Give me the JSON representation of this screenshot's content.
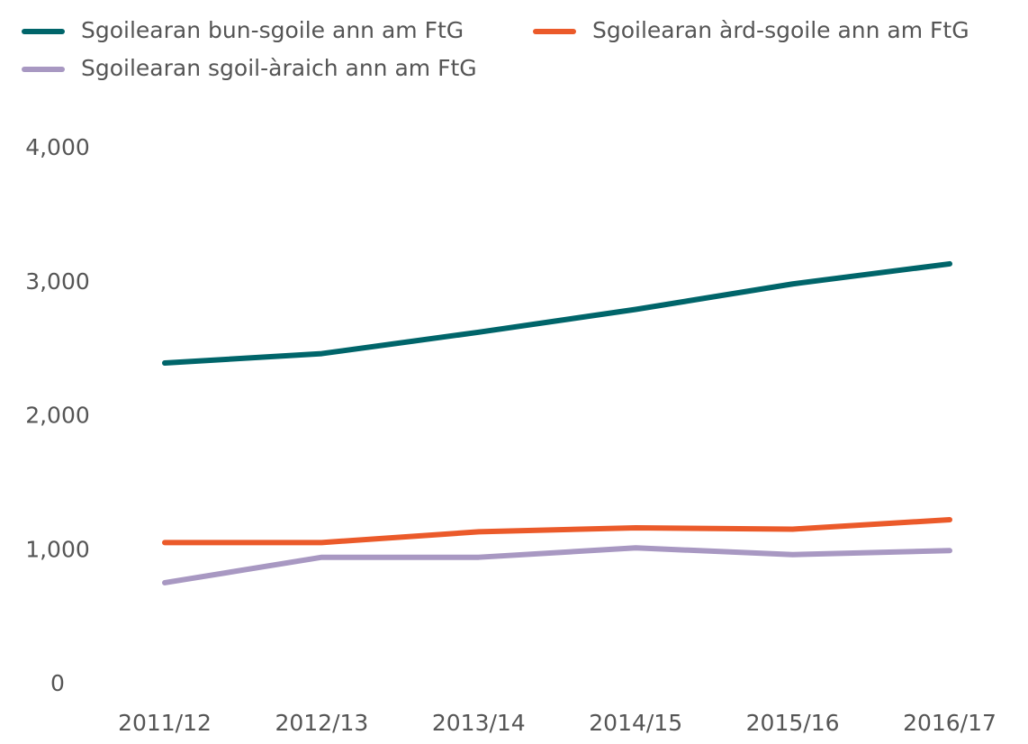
{
  "chart_data": {
    "type": "line",
    "categories": [
      "2011/12",
      "2012/13",
      "2013/14",
      "2014/15",
      "2015/16",
      "2016/17"
    ],
    "series": [
      {
        "name": "Sgoilearan bun-sgoile ann am FtG",
        "color": "#00656a",
        "values": [
          2400,
          2470,
          2630,
          2800,
          2990,
          3140
        ]
      },
      {
        "name": "Sgoilearan àrd-sgoile ann am FtG",
        "color": "#eb5a2a",
        "values": [
          1060,
          1060,
          1140,
          1170,
          1160,
          1230
        ]
      },
      {
        "name": "Sgoilearan sgoil-àraich ann am FtG",
        "color": "#a898c2",
        "values": [
          760,
          950,
          950,
          1020,
          970,
          1000
        ]
      }
    ],
    "ylim": [
      0,
      4000
    ],
    "yticks": [
      0,
      {
        "value": 1000,
        "label": "1,000"
      },
      {
        "value": 2000,
        "label": "2,000"
      },
      {
        "value": 3000,
        "label": "3,000"
      },
      {
        "value": 4000,
        "label": "4,000"
      }
    ],
    "grid": false,
    "legend": "top"
  }
}
